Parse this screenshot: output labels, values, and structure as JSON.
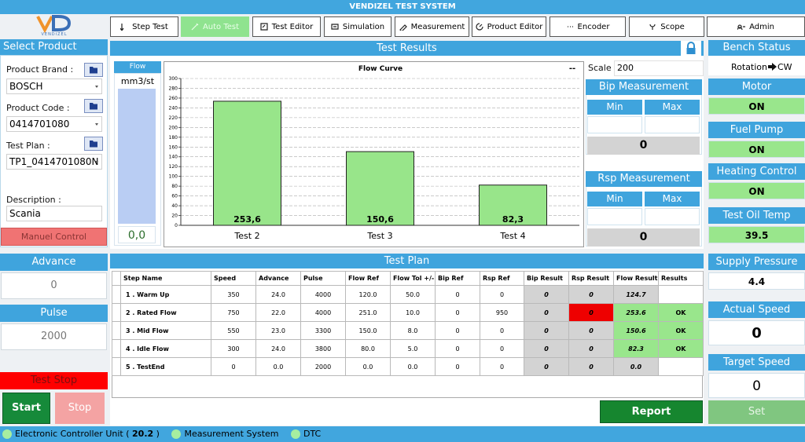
{
  "header": {
    "title": "VENDIZEL TEST SYSTEM",
    "logo_text": "VENDIZEL"
  },
  "toolbar": [
    "Step Test",
    "Auto Test",
    "Test Editor",
    "Simulation",
    "Measurement",
    "Product Editor",
    "Encoder",
    "Scope",
    "Admin"
  ],
  "select_product": {
    "title": "Select Product",
    "brand_label": "Product Brand :",
    "brand": "BOSCH",
    "code_label": "Product Code :",
    "code": "0414701080",
    "plan_label": "Test Plan :",
    "plan": "TP1_0414701080N",
    "description_label": "Description :",
    "description": "Scania",
    "manual_button": "Manuel Control"
  },
  "advance": {
    "title": "Advance",
    "value": "0"
  },
  "pulse": {
    "title": "Pulse",
    "value": "2000"
  },
  "test_stop": "Test Stop",
  "start": "Start",
  "stop": "Stop",
  "test_results": {
    "title": "Test Results",
    "flow_title": "Flow",
    "flow_unit": "mm3/st",
    "flow_value": "0,0",
    "scale_label": "Scale :",
    "scale": "200",
    "bip": {
      "title": "Bip Measurement",
      "min": "Min",
      "max": "Max",
      "value": "0"
    },
    "rsp": {
      "title": "Rsp Measurement",
      "min": "Min",
      "max": "Max",
      "value": "0"
    }
  },
  "chart_data": {
    "type": "bar",
    "title": "Flow Curve",
    "status": "--",
    "categories": [
      "Test 2",
      "Test 3",
      "Test 4"
    ],
    "values": [
      253.6,
      150.6,
      82.3
    ],
    "value_labels": [
      "253,6",
      "150,6",
      "82,3"
    ],
    "color": "#98e58a",
    "ylim": [
      0,
      300
    ],
    "yticks": [
      0,
      20,
      40,
      60,
      80,
      100,
      120,
      140,
      160,
      180,
      200,
      220,
      240,
      260,
      280,
      300
    ],
    "grid": true
  },
  "test_plan": {
    "title": "Test Plan",
    "columns": [
      "Step Name",
      "Speed",
      "Advance",
      "Pulse",
      "Flow Ref",
      "Flow Tol +/-",
      "Bip Ref",
      "Rsp Ref",
      "Bip Result",
      "Rsp Result",
      "Flow Result",
      "Results"
    ],
    "rows": [
      [
        "1 . Warm Up",
        "350",
        "24.0",
        "4000",
        "120.0",
        "50.0",
        "0",
        "0",
        "0",
        "0",
        "124.7",
        null
      ],
      [
        "2 . Rated Flow",
        "750",
        "22.0",
        "4000",
        "251.0",
        "10.0",
        "0",
        "950",
        "0",
        "0",
        "253.6",
        "OK"
      ],
      [
        "3 . Mid Flow",
        "550",
        "23.0",
        "3300",
        "150.0",
        "8.0",
        "0",
        "0",
        "0",
        "0",
        "150.6",
        "OK"
      ],
      [
        "4 . Idle Flow",
        "300",
        "24.0",
        "3800",
        "80.0",
        "5.0",
        "0",
        "0",
        "0",
        "0",
        "82.3",
        "OK"
      ],
      [
        "5 . TestEnd",
        "0",
        "0.0",
        "2000",
        "0.0",
        "0.0",
        "0",
        "0",
        "0",
        "0",
        "0.0",
        null
      ]
    ],
    "report": "Report"
  },
  "bench": {
    "title": "Bench Status",
    "rotation_label": "Rotation",
    "rotation": "CW",
    "motor": {
      "title": "Motor",
      "value": "ON"
    },
    "fuel_pump": {
      "title": "Fuel Pump",
      "value": "ON"
    },
    "heating": {
      "title": "Heating Control",
      "value": "ON"
    },
    "oil_temp": {
      "title": "Test Oil Temp",
      "value": "39.5"
    },
    "supply_pressure": {
      "title": "Supply Pressure",
      "value": "4.4"
    },
    "actual_speed": {
      "title": "Actual Speed",
      "value": "0"
    },
    "target_speed": {
      "title": "Target Speed",
      "value": "0"
    },
    "set": "Set"
  },
  "status_bar": [
    "Electronic Controller Unit (",
    "20.2",
    ")",
    "Measurement System",
    "DTC"
  ]
}
